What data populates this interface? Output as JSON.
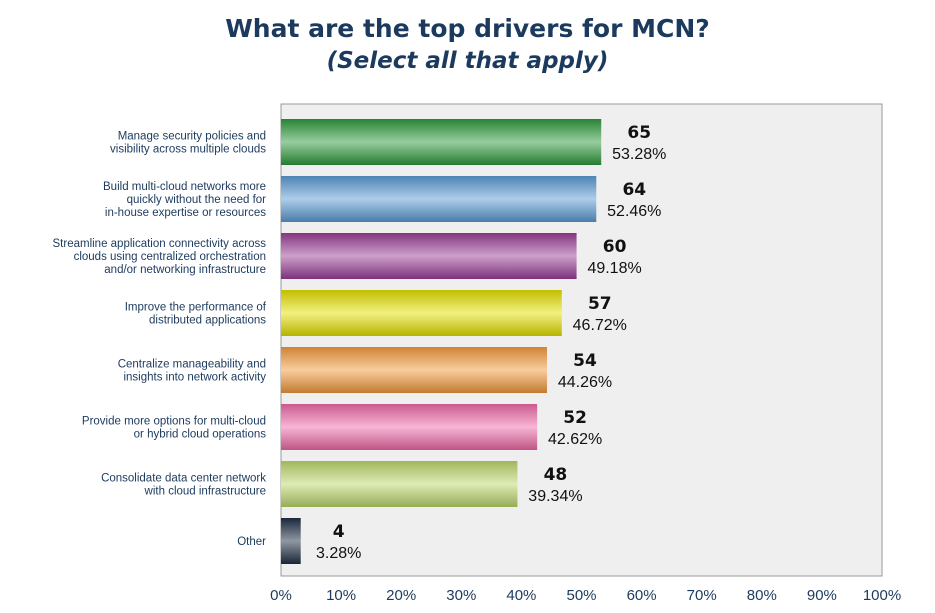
{
  "chart_data": {
    "type": "bar",
    "orientation": "horizontal",
    "title": "What are the top drivers for MCN?",
    "subtitle": "(Select all that apply)",
    "categories": [
      [
        "Manage security policies and",
        "visibility across multiple clouds"
      ],
      [
        "Build multi-cloud networks more",
        "quickly without the need for",
        "in-house expertise or resources"
      ],
      [
        "Streamline application connectivity across",
        "clouds using centralized orchestration",
        "and/or networking infrastructure"
      ],
      [
        "Improve the performance of",
        "distributed applications"
      ],
      [
        "Centralize manageability and",
        "insights into network activity"
      ],
      [
        "Provide more options for multi-cloud",
        "or hybrid cloud operations"
      ],
      [
        "Consolidate data center network",
        "with cloud infrastructure"
      ],
      [
        "Other"
      ]
    ],
    "counts": [
      "65",
      "64",
      "60",
      "57",
      "54",
      "52",
      "48",
      "4"
    ],
    "percent_labels": [
      "53.28%",
      "52.46%",
      "49.18%",
      "46.72%",
      "44.26%",
      "42.62%",
      "39.34%",
      "3.28%"
    ],
    "values": [
      53.28,
      52.46,
      49.18,
      46.72,
      44.26,
      42.62,
      39.34,
      3.28
    ],
    "colors": [
      "#2e9a3c",
      "#5b9bd5",
      "#9a3f96",
      "#e4e000",
      "#f39a3c",
      "#ee6aa8",
      "#bcd76a",
      "#1f2f45"
    ],
    "xlim": [
      0,
      100
    ],
    "xticks": [
      "0%",
      "10%",
      "20%",
      "30%",
      "40%",
      "50%",
      "60%",
      "70%",
      "80%",
      "90%",
      "100%"
    ],
    "legend": "none",
    "grid": false
  }
}
